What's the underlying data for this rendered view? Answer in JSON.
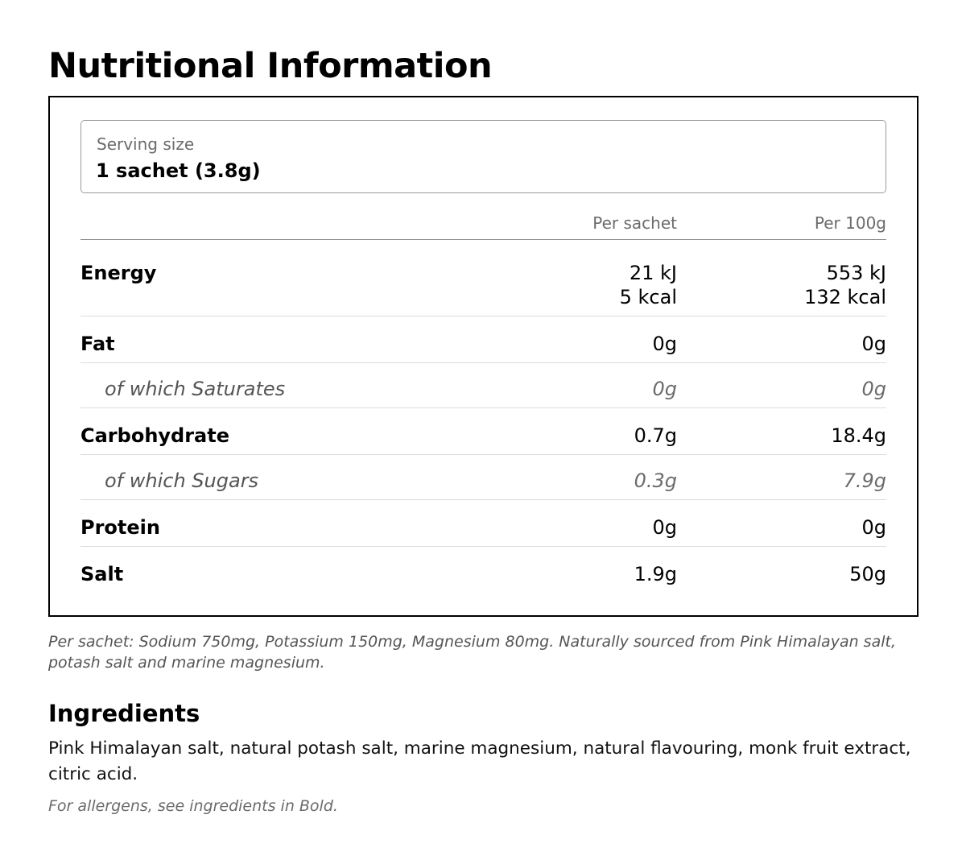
{
  "title": "Nutritional Information",
  "serving": {
    "label": "Serving size",
    "value": "1 sachet (3.8g)"
  },
  "columns": {
    "per_sachet": "Per sachet",
    "per_100g": "Per 100g"
  },
  "rows": [
    {
      "name": "Energy",
      "per_sachet": [
        "21 kJ",
        "5 kcal"
      ],
      "per_100g": [
        "553 kJ",
        "132 kcal"
      ],
      "sub": false
    },
    {
      "name": "Fat",
      "per_sachet": "0g",
      "per_100g": "0g",
      "sub": false
    },
    {
      "name": "of which Saturates",
      "per_sachet": "0g",
      "per_100g": "0g",
      "sub": true
    },
    {
      "name": "Carbohydrate",
      "per_sachet": "0.7g",
      "per_100g": "18.4g",
      "sub": false
    },
    {
      "name": "of which Sugars",
      "per_sachet": "0.3g",
      "per_100g": "7.9g",
      "sub": true
    },
    {
      "name": "Protein",
      "per_sachet": "0g",
      "per_100g": "0g",
      "sub": false
    },
    {
      "name": "Salt",
      "per_sachet": "1.9g",
      "per_100g": "50g",
      "sub": false
    }
  ],
  "note": "Per sachet: Sodium 750mg, Potassium 150mg, Magnesium 80mg. Naturally sourced from Pink Himalayan salt, potash salt and marine magnesium.",
  "ingredients": {
    "title": "Ingredients",
    "text": "Pink Himalayan salt, natural potash salt, marine magnesium, natural flavouring, monk fruit extract, citric acid.",
    "allergen_note": "For allergens, see ingredients in Bold."
  }
}
